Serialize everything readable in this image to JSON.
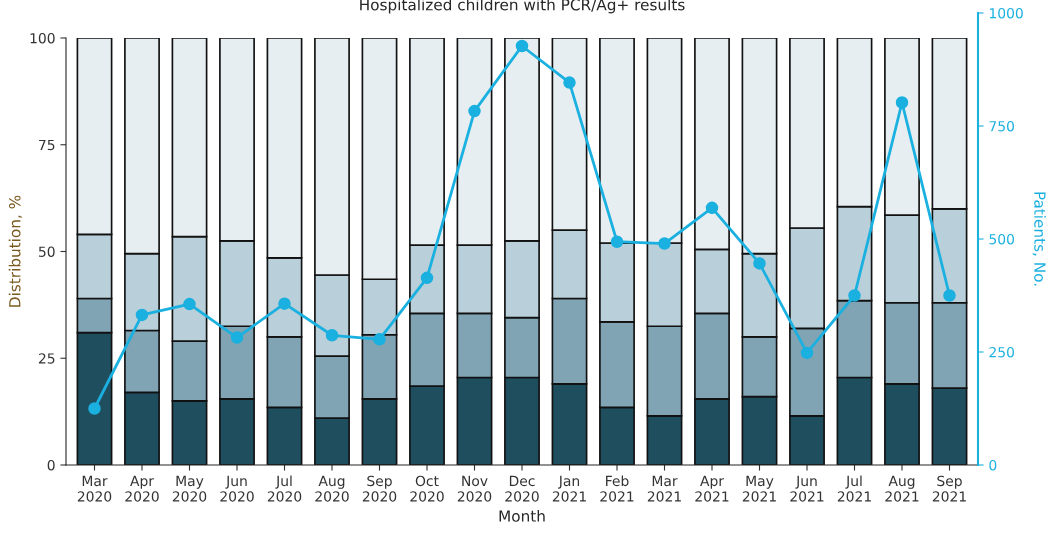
{
  "chart_data": {
    "type": "bar",
    "stacked": true,
    "title": "Hospitalized children with PCR/Ag+ results",
    "xlabel": "Month",
    "ylabel": "Distribution, %",
    "y2label": "Patients, No.",
    "categories": [
      "Mar\n2020",
      "Apr\n2020",
      "May\n2020",
      "Jun\n2020",
      "Jul\n2020",
      "Aug\n2020",
      "Sep\n2020",
      "Oct\n2020",
      "Nov\n2020",
      "Dec\n2020",
      "Jan\n2021",
      "Feb\n2021",
      "Mar\n2021",
      "Apr\n2021",
      "May\n2021",
      "Jun\n2021",
      "Jul\n2021",
      "Aug\n2021",
      "Sep\n2021"
    ],
    "series": [
      {
        "color": "#1f4e5f",
        "values": [
          31,
          17,
          15,
          15.5,
          13.5,
          11,
          15.5,
          18.5,
          20.5,
          20.5,
          19,
          13.5,
          11.5,
          15.5,
          16,
          11.5,
          20.5,
          19,
          18
        ]
      },
      {
        "color": "#80a4b4",
        "values": [
          8,
          14.5,
          14,
          17,
          16.5,
          14.5,
          15,
          17,
          15,
          14,
          20,
          20,
          21,
          20,
          14,
          20.5,
          18,
          19,
          20
        ]
      },
      {
        "color": "#b9cfd9",
        "values": [
          15,
          18,
          24.5,
          20,
          18.5,
          19,
          13,
          16,
          16,
          18,
          16,
          18.5,
          19.5,
          15,
          19.5,
          23.5,
          22,
          20.5,
          22
        ]
      },
      {
        "color": "#e6eef2",
        "values": [
          46,
          50.5,
          46.5,
          47.5,
          51.5,
          55.5,
          56.5,
          48.5,
          48.5,
          47.5,
          45,
          48,
          48,
          49.5,
          50.5,
          44.5,
          39.5,
          41.5,
          40
        ]
      },
      {
        "type": "line",
        "axis": "y2",
        "color": "#1ab0e0",
        "marker": "circle",
        "values": [
          125,
          332,
          356,
          282,
          357,
          287,
          278,
          414,
          783,
          927,
          846,
          494,
          490,
          569,
          446,
          248,
          375,
          802,
          375
        ]
      }
    ],
    "ylim": [
      0,
      100
    ],
    "yticks": [
      0,
      25,
      50,
      75,
      100
    ],
    "y2lim": [
      0,
      1000
    ],
    "y2ticks": [
      0,
      250,
      500,
      750,
      1000
    ],
    "grid": false
  }
}
